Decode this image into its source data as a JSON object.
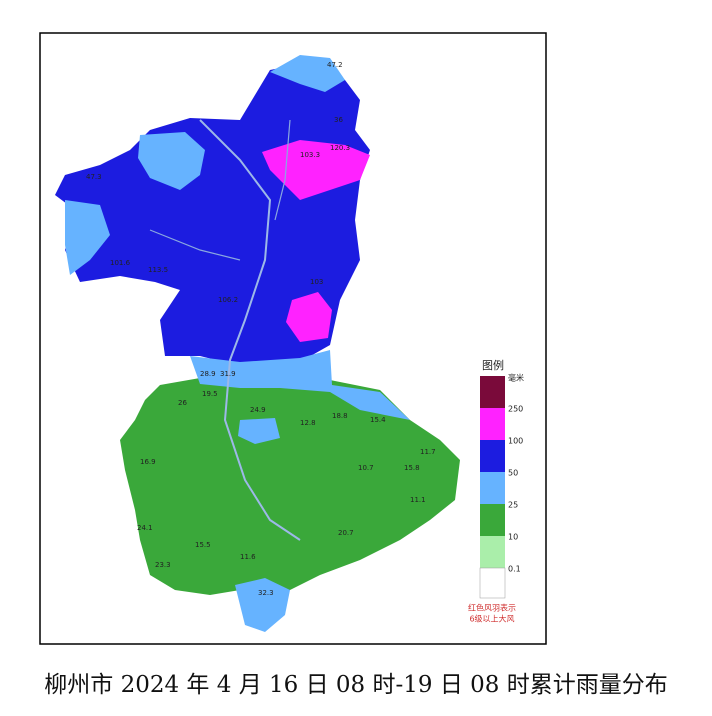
{
  "legend": {
    "title": "图例",
    "unit": "毫米",
    "levels": [
      "250",
      "100",
      "50",
      "25",
      "10",
      "0.1"
    ],
    "note": [
      "红色风羽表示",
      "6级以上大风"
    ]
  },
  "stations": [
    "47.2",
    "36",
    "120.3",
    "103.3",
    "47.3",
    "101.6",
    "113.5",
    "103",
    "106.2",
    "28.9",
    "31.9",
    "26",
    "19.5",
    "24.9",
    "12.8",
    "18.8",
    "15.4",
    "11.7",
    "15.8",
    "10.7",
    "24.1",
    "23.3",
    "32.3",
    "11.1",
    "20.7",
    "16.9",
    "15.5",
    "11.6"
  ],
  "caption": "柳州市 2024 年 4 月 16 日 08 时-19 日 08 时累计雨量分布"
}
